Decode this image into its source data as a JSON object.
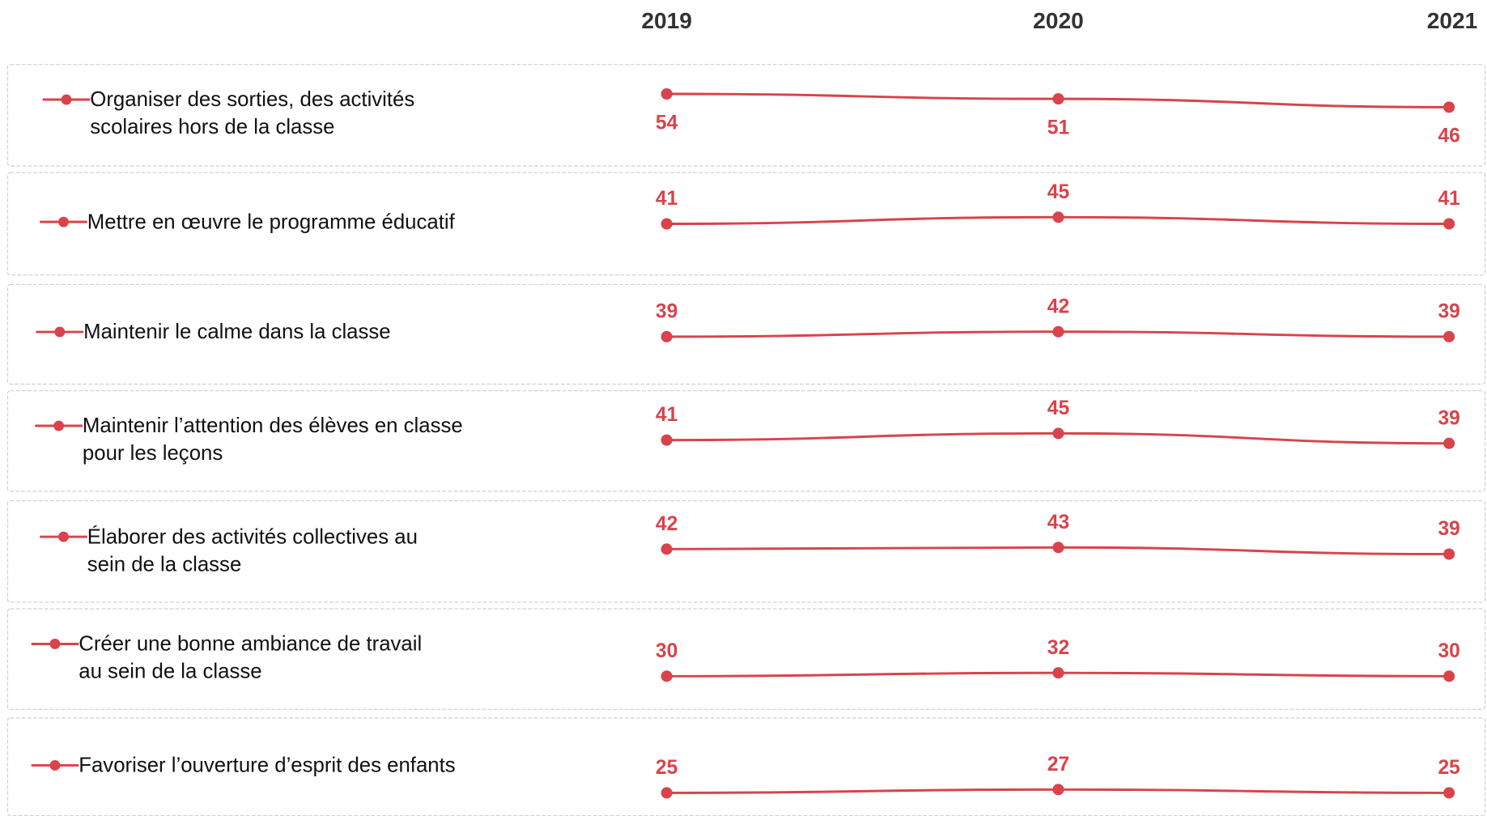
{
  "chart_data": {
    "type": "line",
    "categories": [
      "2019",
      "2020",
      "2021"
    ],
    "series": [
      {
        "name": "Organiser des sorties, des activités\nscolaires hors de la classe",
        "color": "#d9434b",
        "values": [
          54,
          51,
          46
        ]
      },
      {
        "name": "Mettre en œuvre le programme éducatif",
        "color": "#d9434b",
        "values": [
          41,
          45,
          41
        ]
      },
      {
        "name": "Maintenir le calme dans la classe",
        "color": "#d9434b",
        "values": [
          39,
          42,
          39
        ]
      },
      {
        "name": "Maintenir l’attention des élèves en classe\npour les leçons",
        "color": "#d9434b",
        "values": [
          41,
          45,
          39
        ]
      },
      {
        "name": "Élaborer des activités collectives au\nsein de la classe",
        "color": "#d9434b",
        "values": [
          42,
          43,
          39
        ]
      },
      {
        "name": "Créer une bonne ambiance de travail\nau sein de la classe",
        "color": "#d9434b",
        "values": [
          30,
          32,
          30
        ]
      },
      {
        "name": "Favoriser l’ouverture d’esprit des enfants",
        "color": "#d9434b",
        "values": [
          25,
          27,
          25
        ]
      }
    ]
  }
}
